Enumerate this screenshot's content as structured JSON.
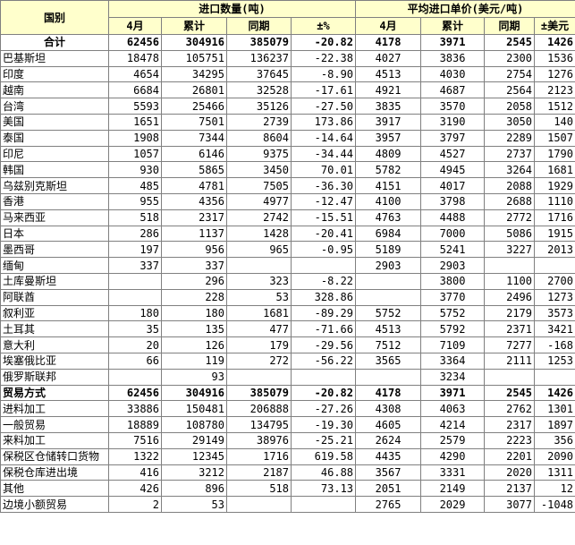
{
  "header": {
    "country": "国别",
    "qty_group": "进口数量(吨)",
    "price_group": "平均进口单价(美元/吨)",
    "qty_cols": [
      "4月",
      "累计",
      "同期",
      "±%"
    ],
    "price_cols": [
      "4月",
      "累计",
      "同期",
      "±美元"
    ]
  },
  "rows": [
    {
      "label": "合计",
      "bold": true,
      "total": true,
      "values": [
        "62456",
        "304916",
        "385079",
        "-20.82",
        "4178",
        "3971",
        "2545",
        "1426"
      ]
    },
    {
      "label": "巴基斯坦",
      "values": [
        "18478",
        "105751",
        "136237",
        "-22.38",
        "4027",
        "3836",
        "2300",
        "1536"
      ]
    },
    {
      "label": "印度",
      "values": [
        "4654",
        "34295",
        "37645",
        "-8.90",
        "4513",
        "4030",
        "2754",
        "1276"
      ]
    },
    {
      "label": "越南",
      "values": [
        "6684",
        "26801",
        "32528",
        "-17.61",
        "4921",
        "4687",
        "2564",
        "2123"
      ]
    },
    {
      "label": "台湾",
      "values": [
        "5593",
        "25466",
        "35126",
        "-27.50",
        "3835",
        "3570",
        "2058",
        "1512"
      ]
    },
    {
      "label": "美国",
      "values": [
        "1651",
        "7501",
        "2739",
        "173.86",
        "3917",
        "3190",
        "3050",
        "140"
      ]
    },
    {
      "label": "泰国",
      "values": [
        "1908",
        "7344",
        "8604",
        "-14.64",
        "3957",
        "3797",
        "2289",
        "1507"
      ]
    },
    {
      "label": "印尼",
      "values": [
        "1057",
        "6146",
        "9375",
        "-34.44",
        "4809",
        "4527",
        "2737",
        "1790"
      ]
    },
    {
      "label": "韩国",
      "values": [
        "930",
        "5865",
        "3450",
        "70.01",
        "5782",
        "4945",
        "3264",
        "1681"
      ]
    },
    {
      "label": "乌兹别克斯坦",
      "values": [
        "485",
        "4781",
        "7505",
        "-36.30",
        "4151",
        "4017",
        "2088",
        "1929"
      ]
    },
    {
      "label": "香港",
      "values": [
        "955",
        "4356",
        "4977",
        "-12.47",
        "4100",
        "3798",
        "2688",
        "1110"
      ]
    },
    {
      "label": "马来西亚",
      "values": [
        "518",
        "2317",
        "2742",
        "-15.51",
        "4763",
        "4488",
        "2772",
        "1716"
      ]
    },
    {
      "label": "日本",
      "values": [
        "286",
        "1137",
        "1428",
        "-20.41",
        "6984",
        "7000",
        "5086",
        "1915"
      ]
    },
    {
      "label": "墨西哥",
      "values": [
        "197",
        "956",
        "965",
        "-0.95",
        "5189",
        "5241",
        "3227",
        "2013"
      ]
    },
    {
      "label": "缅甸",
      "values": [
        "337",
        "337",
        "",
        "",
        "2903",
        "2903",
        "",
        ""
      ]
    },
    {
      "label": "土库曼斯坦",
      "values": [
        "",
        "296",
        "323",
        "-8.22",
        "",
        "3800",
        "1100",
        "2700"
      ]
    },
    {
      "label": "阿联酋",
      "values": [
        "",
        "228",
        "53",
        "328.86",
        "",
        "3770",
        "2496",
        "1273"
      ]
    },
    {
      "label": "叙利亚",
      "values": [
        "180",
        "180",
        "1681",
        "-89.29",
        "5752",
        "5752",
        "2179",
        "3573"
      ]
    },
    {
      "label": "土耳其",
      "values": [
        "35",
        "135",
        "477",
        "-71.66",
        "4513",
        "5792",
        "2371",
        "3421"
      ]
    },
    {
      "label": "意大利",
      "values": [
        "20",
        "126",
        "179",
        "-29.56",
        "7512",
        "7109",
        "7277",
        "-168"
      ]
    },
    {
      "label": "埃塞俄比亚",
      "values": [
        "66",
        "119",
        "272",
        "-56.22",
        "3565",
        "3364",
        "2111",
        "1253"
      ]
    },
    {
      "label": "俄罗斯联邦",
      "values": [
        "",
        "93",
        "",
        "",
        "",
        "3234",
        "",
        ""
      ]
    },
    {
      "label": "贸易方式",
      "bold": true,
      "values": [
        "62456",
        "304916",
        "385079",
        "-20.82",
        "4178",
        "3971",
        "2545",
        "1426"
      ]
    },
    {
      "label": "进料加工",
      "values": [
        "33886",
        "150481",
        "206888",
        "-27.26",
        "4308",
        "4063",
        "2762",
        "1301"
      ]
    },
    {
      "label": "一般贸易",
      "values": [
        "18889",
        "108780",
        "134795",
        "-19.30",
        "4605",
        "4214",
        "2317",
        "1897"
      ]
    },
    {
      "label": "来料加工",
      "values": [
        "7516",
        "29149",
        "38976",
        "-25.21",
        "2624",
        "2579",
        "2223",
        "356"
      ]
    },
    {
      "label": "保税区仓储转口货物",
      "values": [
        "1322",
        "12345",
        "1716",
        "619.58",
        "4435",
        "4290",
        "2201",
        "2090"
      ]
    },
    {
      "label": "保税仓库进出境",
      "values": [
        "416",
        "3212",
        "2187",
        "46.88",
        "3567",
        "3331",
        "2020",
        "1311"
      ]
    },
    {
      "label": "其他",
      "values": [
        "426",
        "896",
        "518",
        "73.13",
        "2051",
        "2149",
        "2137",
        "12"
      ]
    },
    {
      "label": "边境小额贸易",
      "values": [
        "2",
        "53",
        "",
        "",
        "2765",
        "2029",
        "3077",
        "-1048"
      ]
    }
  ]
}
